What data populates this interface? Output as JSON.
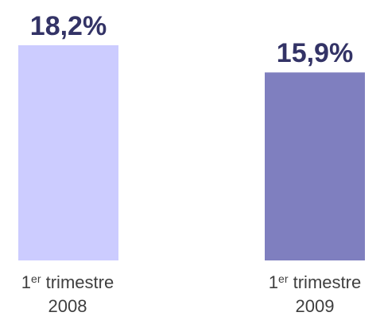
{
  "chart_data": {
    "type": "bar",
    "title": "",
    "xlabel": "",
    "ylabel": "",
    "categories": [
      {
        "prefix": "1",
        "sup": "er",
        "word": " trimestre",
        "year": "2008"
      },
      {
        "prefix": "1",
        "sup": "er",
        "word": " trimestre",
        "year": "2009"
      }
    ],
    "values": [
      18.2,
      15.9
    ],
    "value_labels": [
      "18,2%",
      "15,9%"
    ],
    "bar_colors": [
      "#ccccff",
      "#7f7fbf"
    ],
    "value_label_color": "#333366",
    "ylim": [
      0,
      18.2
    ],
    "grid": false,
    "legend": "none"
  }
}
